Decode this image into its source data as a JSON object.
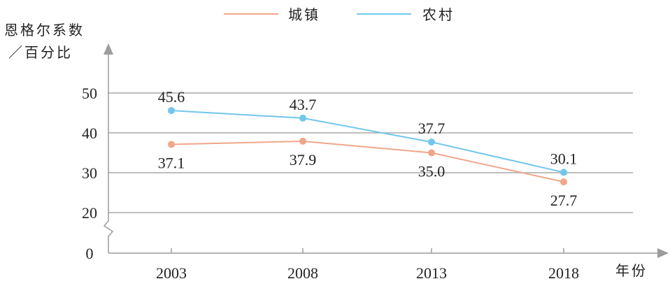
{
  "chart_data": {
    "type": "line",
    "categories": [
      "2003",
      "2008",
      "2013",
      "2018"
    ],
    "series": [
      {
        "name": "城镇",
        "values": [
          37.1,
          37.9,
          35.0,
          27.7
        ],
        "color": "#f0a68a"
      },
      {
        "name": "农村",
        "values": [
          45.6,
          43.7,
          37.7,
          30.1
        ],
        "color": "#72c6ec"
      }
    ],
    "value_labels": {
      "城镇": [
        "37.1",
        "37.9",
        "35.0",
        "27.7"
      ],
      "农村": [
        "45.6",
        "43.7",
        "37.7",
        "30.1"
      ]
    },
    "ylabel_line1": "恩格尔系数",
    "ylabel_line2": "／百分比",
    "xlabel": "年份",
    "yticks": [
      "20",
      "30",
      "40",
      "50"
    ],
    "ytick_values": [
      20,
      30,
      40,
      50
    ],
    "zero_tick": "0",
    "axis_break": true,
    "ylim": [
      20,
      50
    ],
    "grid": true,
    "legend_position": "top"
  }
}
